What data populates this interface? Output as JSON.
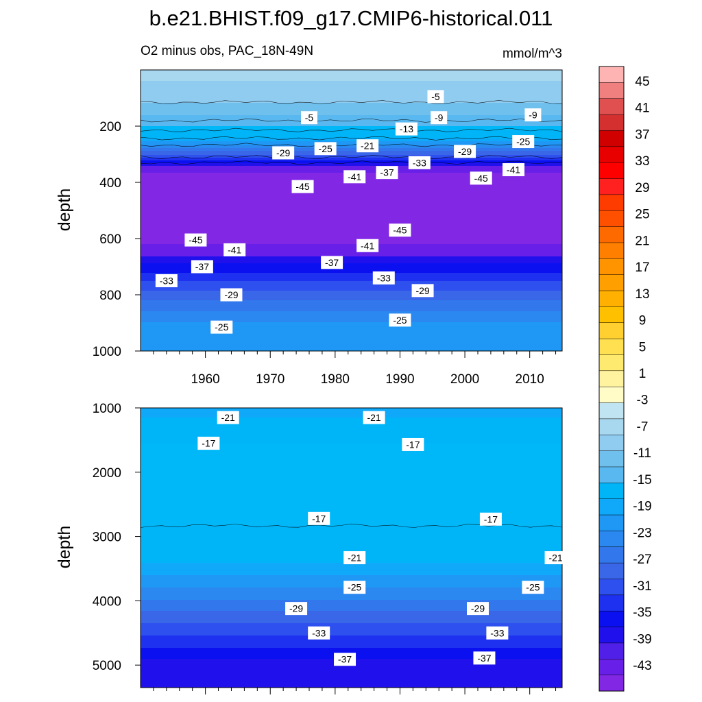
{
  "chart_data": {
    "type": "contour",
    "title": "b.e21.BHIST.f09_g17.CMIP6-historical.011",
    "left_string": "O2 minus obs, PAC_18N-49N",
    "right_string": "mmol/m^3",
    "xlabel": "",
    "ylabel": "depth",
    "xlim": [
      1950,
      2015
    ],
    "x_ticks": [
      "1960",
      "1970",
      "1980",
      "1990",
      "2000",
      "2010"
    ],
    "panels": [
      {
        "name": "upper",
        "ylim": [
          0,
          1000
        ],
        "y_ticks": [
          "200",
          "400",
          "600",
          "800",
          "1000"
        ],
        "profile": [
          {
            "depth": 0,
            "value": -6
          },
          {
            "depth": 80,
            "value": -8
          },
          {
            "depth": 150,
            "value": -10
          },
          {
            "depth": 200,
            "value": -15
          },
          {
            "depth": 250,
            "value": -22
          },
          {
            "depth": 290,
            "value": -29
          },
          {
            "depth": 320,
            "value": -35
          },
          {
            "depth": 350,
            "value": -41
          },
          {
            "depth": 380,
            "value": -45
          },
          {
            "depth": 600,
            "value": -45
          },
          {
            "depth": 640,
            "value": -41
          },
          {
            "depth": 690,
            "value": -37
          },
          {
            "depth": 750,
            "value": -33
          },
          {
            "depth": 820,
            "value": -29
          },
          {
            "depth": 900,
            "value": -25
          },
          {
            "depth": 1000,
            "value": -23
          }
        ],
        "contour_labels": [
          {
            "text": "-5",
            "x": 1976.0,
            "depth": 170
          },
          {
            "text": "-5",
            "x": 1995.5,
            "depth": 95
          },
          {
            "text": "-9",
            "x": 1996.0,
            "depth": 170
          },
          {
            "text": "-9",
            "x": 2010.5,
            "depth": 160
          },
          {
            "text": "-13",
            "x": 1991.0,
            "depth": 210
          },
          {
            "text": "-29",
            "x": 1972.0,
            "depth": 295
          },
          {
            "text": "-25",
            "x": 1978.5,
            "depth": 280
          },
          {
            "text": "-21",
            "x": 1985.0,
            "depth": 270
          },
          {
            "text": "-29",
            "x": 2000.0,
            "depth": 290
          },
          {
            "text": "-25",
            "x": 2009.0,
            "depth": 255
          },
          {
            "text": "-33",
            "x": 1993.0,
            "depth": 330
          },
          {
            "text": "-37",
            "x": 1988.0,
            "depth": 365
          },
          {
            "text": "-41",
            "x": 1983.0,
            "depth": 380
          },
          {
            "text": "-41",
            "x": 2007.5,
            "depth": 355
          },
          {
            "text": "-45",
            "x": 1975.0,
            "depth": 415
          },
          {
            "text": "-45",
            "x": 2002.5,
            "depth": 385
          },
          {
            "text": "-45",
            "x": 1990.0,
            "depth": 570
          },
          {
            "text": "-45",
            "x": 1958.5,
            "depth": 605
          },
          {
            "text": "-41",
            "x": 1964.5,
            "depth": 640
          },
          {
            "text": "-41",
            "x": 1985.0,
            "depth": 625
          },
          {
            "text": "-37",
            "x": 1959.5,
            "depth": 700
          },
          {
            "text": "-37",
            "x": 1979.5,
            "depth": 685
          },
          {
            "text": "-33",
            "x": 1954.0,
            "depth": 750
          },
          {
            "text": "-33",
            "x": 1987.5,
            "depth": 740
          },
          {
            "text": "-29",
            "x": 1964.0,
            "depth": 800
          },
          {
            "text": "-29",
            "x": 1993.5,
            "depth": 785
          },
          {
            "text": "-25",
            "x": 1962.5,
            "depth": 915
          },
          {
            "text": "-25",
            "x": 1990.0,
            "depth": 890
          }
        ]
      },
      {
        "name": "lower",
        "ylim": [
          1000,
          5350
        ],
        "y_ticks": [
          "1000",
          "2000",
          "3000",
          "4000",
          "5000"
        ],
        "profile": [
          {
            "depth": 1000,
            "value": -22
          },
          {
            "depth": 1150,
            "value": -21
          },
          {
            "depth": 1350,
            "value": -19
          },
          {
            "depth": 1550,
            "value": -17
          },
          {
            "depth": 2700,
            "value": -16
          },
          {
            "depth": 3100,
            "value": -19
          },
          {
            "depth": 3400,
            "value": -21
          },
          {
            "depth": 3800,
            "value": -25
          },
          {
            "depth": 4150,
            "value": -29
          },
          {
            "depth": 4550,
            "value": -33
          },
          {
            "depth": 4900,
            "value": -37
          },
          {
            "depth": 5350,
            "value": -39
          }
        ],
        "contour_labels": [
          {
            "text": "-21",
            "x": 1963.5,
            "depth": 1150
          },
          {
            "text": "-21",
            "x": 1986.0,
            "depth": 1150
          },
          {
            "text": "-17",
            "x": 1960.5,
            "depth": 1550
          },
          {
            "text": "-17",
            "x": 1992.0,
            "depth": 1570
          },
          {
            "text": "-17",
            "x": 1977.5,
            "depth": 2720
          },
          {
            "text": "-17",
            "x": 2004.0,
            "depth": 2730
          },
          {
            "text": "-21",
            "x": 1983.0,
            "depth": 3330
          },
          {
            "text": "-21",
            "x": 2014.0,
            "depth": 3330
          },
          {
            "text": "-25",
            "x": 1983.0,
            "depth": 3790
          },
          {
            "text": "-25",
            "x": 2010.5,
            "depth": 3790
          },
          {
            "text": "-29",
            "x": 1974.0,
            "depth": 4120
          },
          {
            "text": "-29",
            "x": 2002.0,
            "depth": 4120
          },
          {
            "text": "-33",
            "x": 1977.5,
            "depth": 4500
          },
          {
            "text": "-33",
            "x": 2005.0,
            "depth": 4500
          },
          {
            "text": "-37",
            "x": 1981.5,
            "depth": 4910
          },
          {
            "text": "-37",
            "x": 2003.0,
            "depth": 4890
          }
        ]
      }
    ],
    "colorbar": {
      "labels": [
        "45",
        "41",
        "37",
        "33",
        "29",
        "25",
        "21",
        "17",
        "13",
        "9",
        "5",
        "1",
        "-3",
        "-7",
        "-11",
        "-15",
        "-19",
        "-23",
        "-27",
        "-31",
        "-35",
        "-39",
        "-43"
      ],
      "colors": [
        "#FFB4B4",
        "#F08080",
        "#E05050",
        "#D43030",
        "#D00000",
        "#E80000",
        "#FF0000",
        "#FF2020",
        "#FF3C00",
        "#FF5000",
        "#FF6A00",
        "#FF8000",
        "#FF9400",
        "#FFA000",
        "#FFB000",
        "#FFC000",
        "#FFD030",
        "#FFE050",
        "#FFEA70",
        "#FFF3A0",
        "#FFFCC8",
        "#C0E4F2",
        "#A8D8F0",
        "#90CCF0",
        "#70C0EE",
        "#5AB8F0",
        "#00B4F8",
        "#10A8F8",
        "#1E98F4",
        "#2A88F0",
        "#3278EC",
        "#3A66E8",
        "#2E50EE",
        "#1E30F0",
        "#0A10F0",
        "#2010EC",
        "#5020E8",
        "#6820E8",
        "#8228E4"
      ]
    }
  }
}
